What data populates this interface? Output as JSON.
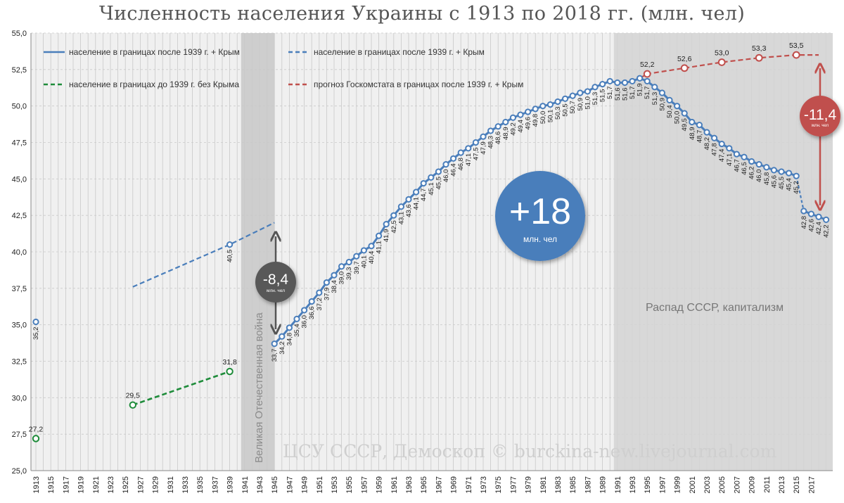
{
  "chart_data": {
    "type": "line",
    "title": "Численность населения Украины с 1913 по 2018 гг. (млн. чел)",
    "xlim": [
      1913,
      2018
    ],
    "ylim": [
      25,
      55
    ],
    "y_ticks": [
      "25,0",
      "27,5",
      "30,0",
      "32,5",
      "35,0",
      "37,5",
      "40,0",
      "42,5",
      "45,0",
      "47,5",
      "50,0",
      "52,5",
      "55,0"
    ],
    "x_ticks": [
      "1913",
      "1915",
      "1917",
      "1919",
      "1921",
      "1923",
      "1925",
      "1927",
      "1929",
      "1931",
      "1933",
      "1935",
      "1937",
      "1939",
      "1941",
      "1943",
      "1945",
      "1947",
      "1949",
      "1951",
      "1953",
      "1955",
      "1957",
      "1959",
      "1961",
      "1963",
      "1965",
      "1967",
      "1969",
      "1971",
      "1973",
      "1975",
      "1977",
      "1979",
      "1981",
      "1983",
      "1985",
      "1987",
      "1989",
      "1991",
      "1993",
      "1995",
      "1997",
      "1999",
      "2001",
      "2003",
      "2005",
      "2007",
      "2009",
      "2011",
      "2013",
      "2015",
      "2017"
    ],
    "grid": true,
    "legend_position": "top-left",
    "series": [
      {
        "name": "население в границах после 1939 г. + Крым",
        "color": "#4a7ebb",
        "style": "solid-markers",
        "points": [
          [
            1913,
            35.2
          ],
          [
            1939,
            40.5
          ],
          [
            1945,
            33.7
          ],
          [
            1946,
            34.2
          ],
          [
            1947,
            34.8
          ],
          [
            1948,
            35.4
          ],
          [
            1949,
            36.0
          ],
          [
            1950,
            36.6
          ],
          [
            1951,
            37.2
          ],
          [
            1952,
            37.9
          ],
          [
            1953,
            38.4
          ],
          [
            1954,
            39.0
          ],
          [
            1955,
            39.3
          ],
          [
            1956,
            39.7
          ],
          [
            1957,
            40.1
          ],
          [
            1958,
            40.4
          ],
          [
            1959,
            41.1
          ],
          [
            1960,
            41.9
          ],
          [
            1961,
            42.5
          ],
          [
            1962,
            43.1
          ],
          [
            1963,
            43.6
          ],
          [
            1964,
            44.1
          ],
          [
            1965,
            44.7
          ],
          [
            1966,
            45.1
          ],
          [
            1967,
            45.5
          ],
          [
            1968,
            46.0
          ],
          [
            1969,
            46.4
          ],
          [
            1970,
            46.8
          ],
          [
            1971,
            47.1
          ],
          [
            1972,
            47.5
          ],
          [
            1973,
            47.9
          ],
          [
            1974,
            48.3
          ],
          [
            1975,
            48.6
          ],
          [
            1976,
            48.9
          ],
          [
            1977,
            49.2
          ],
          [
            1978,
            49.4
          ],
          [
            1979,
            49.6
          ],
          [
            1980,
            49.8
          ],
          [
            1981,
            50.0
          ],
          [
            1982,
            50.1
          ],
          [
            1983,
            50.3
          ],
          [
            1984,
            50.5
          ],
          [
            1985,
            50.7
          ],
          [
            1986,
            50.9
          ],
          [
            1987,
            51.0
          ],
          [
            1988,
            51.3
          ],
          [
            1989,
            51.5
          ],
          [
            1990,
            51.7
          ],
          [
            1991,
            51.6
          ],
          [
            1992,
            51.6
          ],
          [
            1993,
            51.7
          ],
          [
            1994,
            51.9
          ],
          [
            1995,
            51.7
          ],
          [
            1996,
            51.3
          ],
          [
            1997,
            50.9
          ],
          [
            1998,
            50.4
          ],
          [
            1999,
            50.0
          ],
          [
            2000,
            49.5
          ],
          [
            2001,
            48.9
          ],
          [
            2002,
            48.7
          ],
          [
            2003,
            48.2
          ],
          [
            2004,
            47.8
          ],
          [
            2005,
            47.4
          ],
          [
            2006,
            47.1
          ],
          [
            2007,
            46.7
          ],
          [
            2008,
            46.5
          ],
          [
            2009,
            46.2
          ],
          [
            2010,
            46.0
          ],
          [
            2011,
            45.8
          ],
          [
            2012,
            45.6
          ],
          [
            2013,
            45.5
          ],
          [
            2014,
            45.4
          ],
          [
            2015,
            45.2
          ],
          [
            2016,
            42.8
          ],
          [
            2017,
            42.6
          ],
          [
            2018,
            42.4
          ],
          [
            2019,
            42.2
          ]
        ],
        "labels": [
          "35,2",
          "40,5",
          "33,7",
          "34,2",
          "34,8",
          "35,4",
          "36,0",
          "36,6",
          "37,2",
          "37,9",
          "38,4",
          "39,0",
          "39,3",
          "39,7",
          "40,1",
          "40,4",
          "41,1",
          "41,9",
          "42,5",
          "43,1",
          "43,6",
          "44,1",
          "44,7",
          "45,1",
          "45,5",
          "46,0",
          "46,4",
          "46,8",
          "47,1",
          "47,5",
          "47,9",
          "48,3",
          "48,6",
          "48,9",
          "49,2",
          "49,4",
          "49,6",
          "49,8",
          "50,0",
          "50,1",
          "50,3",
          "50,5",
          "50,7",
          "50,9",
          "51,0",
          "51,3",
          "51,5",
          "51,7",
          "51,6",
          "51,6",
          "51,7",
          "51,9",
          "51,7",
          "51,3",
          "50,9",
          "50,4",
          "50,0",
          "49,5",
          "48,9",
          "48,7",
          "48,2",
          "47,8",
          "47,4",
          "47,1",
          "46,7",
          "46,5",
          "46,2",
          "46,0",
          "45,8",
          "45,6",
          "45,5",
          "45,4",
          "45,2",
          "42,8",
          "42,6",
          "42,4",
          "42,2"
        ]
      },
      {
        "name": "население в границах после 1939 г. + Крым",
        "color": "#4a7ebb",
        "style": "dashed",
        "points": [
          [
            1926,
            37.6
          ],
          [
            1939,
            40.5
          ],
          [
            1945,
            42.0
          ]
        ]
      },
      {
        "name": "население в границах до 1939 г. без Крыма",
        "color": "#1e8c3a",
        "style": "dashed-markers",
        "points": [
          [
            1913,
            27.2
          ],
          [
            1926,
            29.5
          ],
          [
            1939,
            31.8
          ]
        ],
        "labels": [
          "27,2",
          "29,5",
          "31,8"
        ]
      },
      {
        "name": "прогноз Госкомстата в границах после 1939 г. + Крым",
        "color": "#c0504d",
        "style": "dashed-markers",
        "points": [
          [
            1994,
            51.9
          ],
          [
            1995,
            52.2
          ],
          [
            2000,
            52.6
          ],
          [
            2005,
            53.0
          ],
          [
            2010,
            53.3
          ],
          [
            2015,
            53.5
          ],
          [
            2018,
            53.5
          ]
        ],
        "labels": [
          "",
          "52,2",
          "52,6",
          "53,0",
          "53,3",
          "53,5",
          ""
        ]
      }
    ],
    "annotations": {
      "war_band": {
        "from": 1941,
        "to": 1945,
        "text": "Великая Отечественная война"
      },
      "ussr_band": {
        "from": 1991,
        "to": 2018,
        "text": "Распад СССР, капитализм"
      },
      "war_loss": {
        "value": "-8,4",
        "unit": "млн. чел"
      },
      "growth": {
        "value": "+18",
        "unit": "млн. чел"
      },
      "gap": {
        "value": "-11,4",
        "unit": "млн. чел"
      },
      "source": "ЦСУ СССР, Демоскоп © burckina-new.livejournal.com"
    }
  },
  "colors": {
    "blue": "#4a7ebb",
    "green": "#1e8c3a",
    "red": "#c0504d",
    "grey_bubble": "#595959",
    "band": "#c8c8c8"
  }
}
